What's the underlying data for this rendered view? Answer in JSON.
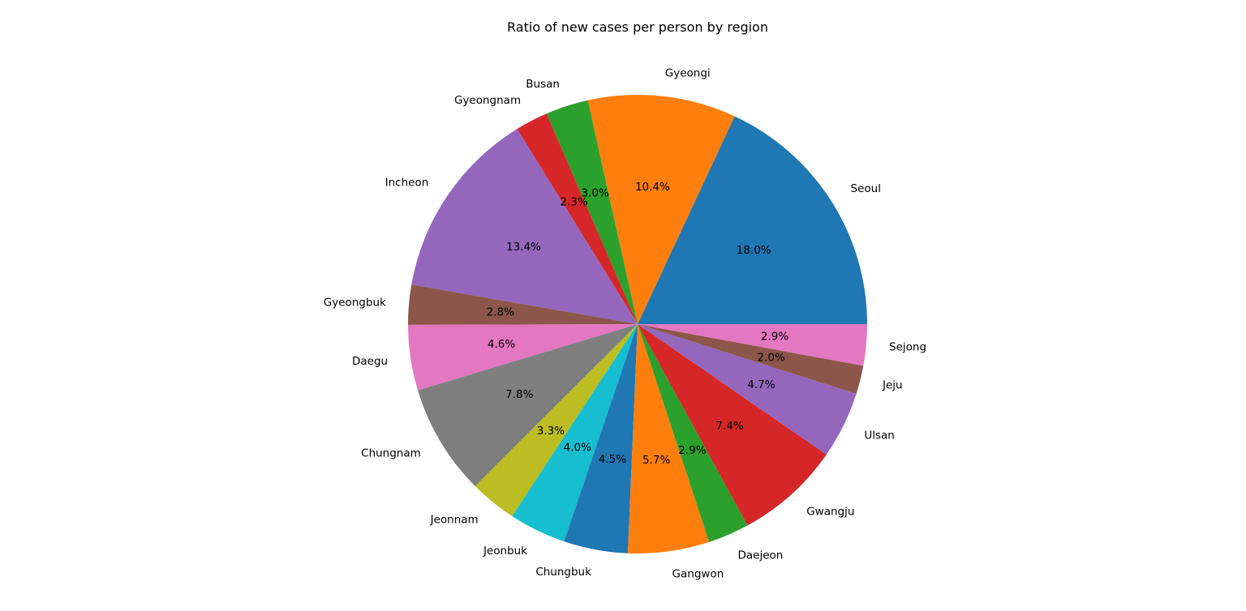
{
  "chart_data": {
    "type": "pie",
    "title": "Ratio of new cases per person by region",
    "start_angle_deg": 0,
    "direction": "counterclockwise",
    "categories": [
      "Seoul",
      "Gyeongi",
      "Busan",
      "Gyeongnam",
      "Incheon",
      "Gyeongbuk",
      "Daegu",
      "Chungnam",
      "Jeonnam",
      "Jeonbuk",
      "Chungbuk",
      "Gangwon",
      "Daejeon",
      "Gwangju",
      "Ulsan",
      "Jeju",
      "Sejong"
    ],
    "values": [
      18.0,
      10.4,
      3.0,
      2.3,
      13.4,
      2.8,
      4.6,
      7.8,
      3.3,
      4.0,
      4.5,
      5.7,
      2.9,
      7.4,
      4.7,
      2.0,
      2.9
    ],
    "value_labels": [
      "18.0%",
      "10.4%",
      "3.0%",
      "2.3%",
      "13.4%",
      "2.8%",
      "4.6%",
      "7.8%",
      "3.3%",
      "4.0%",
      "4.5%",
      "5.7%",
      "2.9%",
      "7.4%",
      "4.7%",
      "2.0%",
      "2.9%"
    ],
    "colors": [
      "#1f77b4",
      "#ff7f0e",
      "#2ca02c",
      "#d62728",
      "#9467bd",
      "#8c564b",
      "#e377c2",
      "#7f7f7f",
      "#bcbd22",
      "#17becf",
      "#1f77b4",
      "#ff7f0e",
      "#2ca02c",
      "#d62728",
      "#9467bd",
      "#8c564b",
      "#e377c2"
    ]
  }
}
